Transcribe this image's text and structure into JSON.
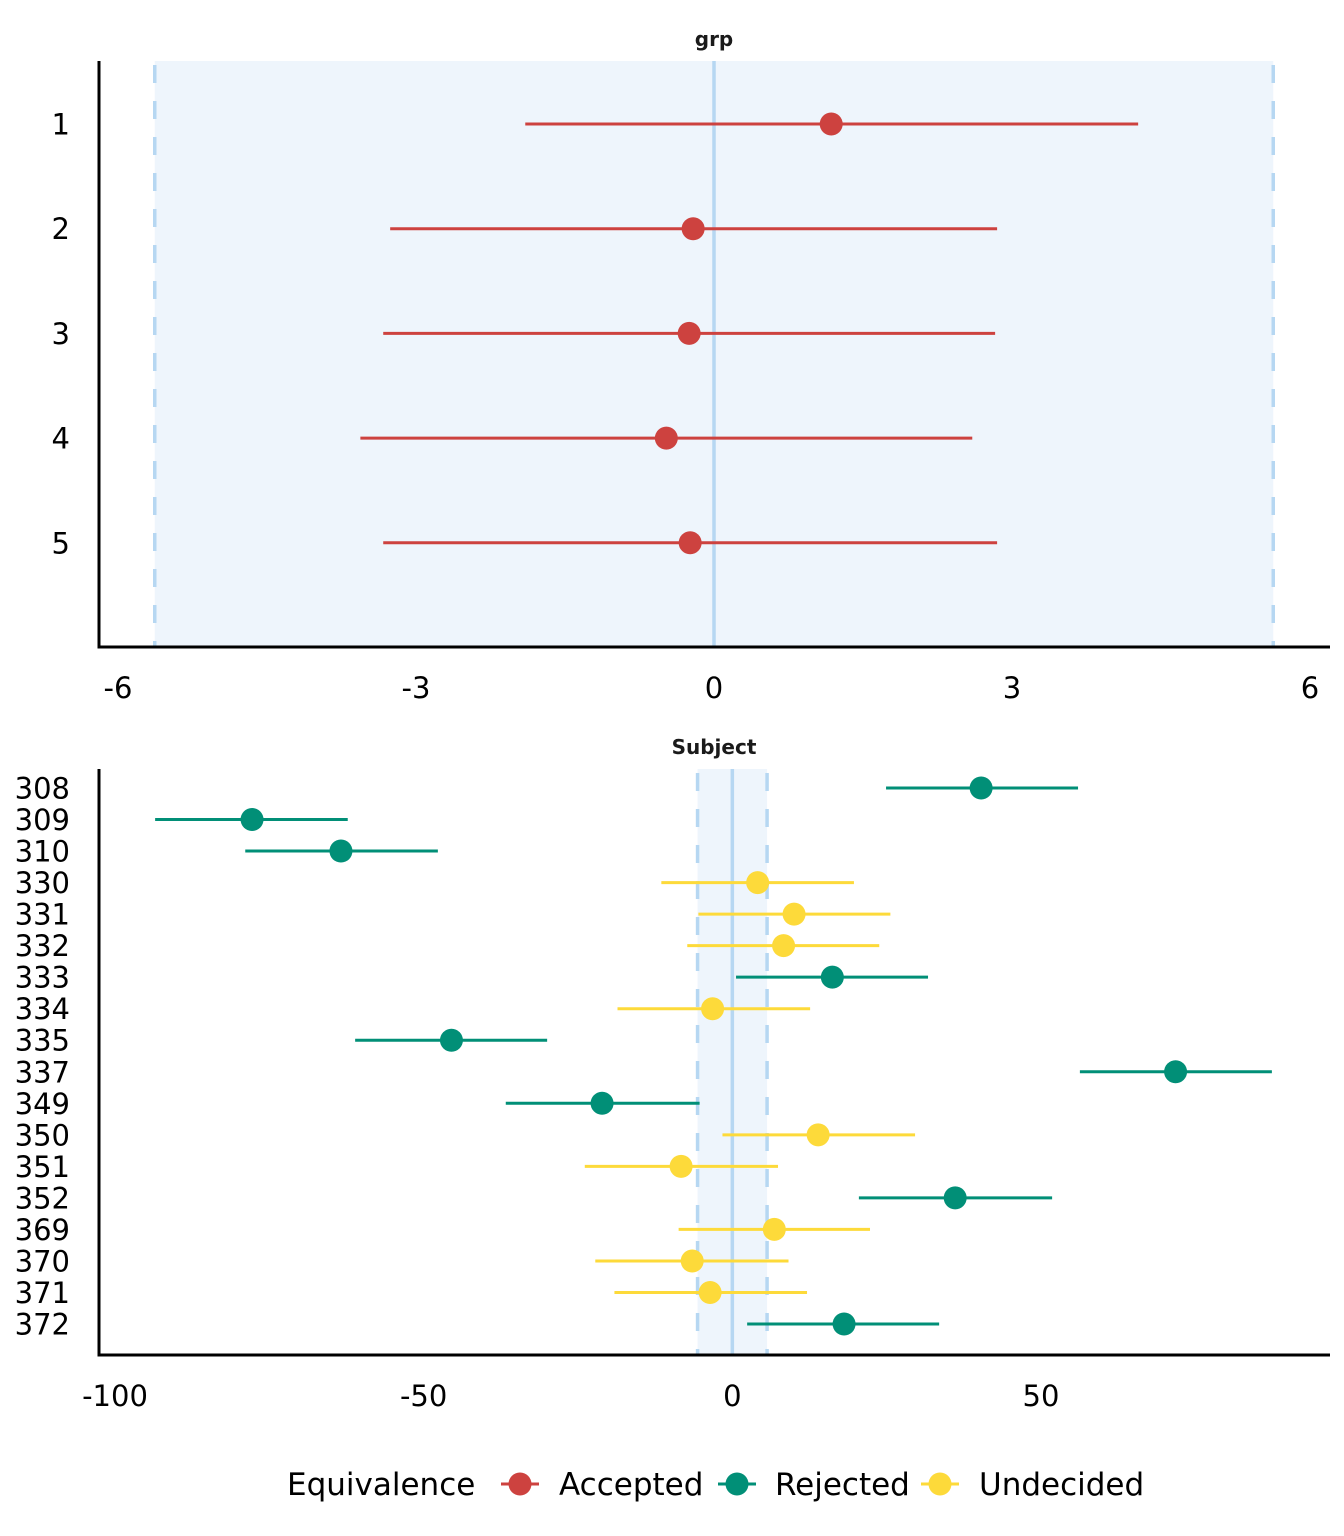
{
  "chart_data": [
    {
      "type": "scatter",
      "subtype": "forest-plot-equivalence",
      "title": "grp",
      "xlabel": "",
      "ylabel": "",
      "xlim": [
        -6.2,
        6.2
      ],
      "x_ticks": [
        -6,
        -3,
        0,
        3,
        6
      ],
      "x_tick_labels": [
        "-6",
        "-3",
        "0",
        "3",
        "6"
      ],
      "rope": [
        -5.63,
        5.63
      ],
      "reference_line": 0,
      "grid": false,
      "categories": [
        "1",
        "2",
        "3",
        "4",
        "5"
      ],
      "rows": [
        {
          "label": "1",
          "estimate": 1.18,
          "ci_low": -1.9,
          "ci_high": 4.27,
          "equivalence": "Accepted"
        },
        {
          "label": "2",
          "estimate": -0.21,
          "ci_low": -3.26,
          "ci_high": 2.85,
          "equivalence": "Accepted"
        },
        {
          "label": "3",
          "estimate": -0.25,
          "ci_low": -3.33,
          "ci_high": 2.83,
          "equivalence": "Accepted"
        },
        {
          "label": "4",
          "estimate": -0.48,
          "ci_low": -3.56,
          "ci_high": 2.6,
          "equivalence": "Accepted"
        },
        {
          "label": "5",
          "estimate": -0.24,
          "ci_low": -3.33,
          "ci_high": 2.85,
          "equivalence": "Accepted"
        }
      ]
    },
    {
      "type": "scatter",
      "subtype": "forest-plot-equivalence",
      "title": "Subject",
      "xlabel": "",
      "ylabel": "",
      "xlim": [
        -102.5,
        96.5
      ],
      "x_ticks": [
        -100,
        -50,
        0,
        50
      ],
      "x_tick_labels": [
        "-100",
        "-50",
        "0",
        "50"
      ],
      "rope": [
        -5.63,
        5.63
      ],
      "reference_line": 0,
      "grid": false,
      "categories": [
        "308",
        "309",
        "310",
        "330",
        "331",
        "332",
        "333",
        "334",
        "335",
        "337",
        "349",
        "350",
        "351",
        "352",
        "369",
        "370",
        "371",
        "372"
      ],
      "rows": [
        {
          "label": "308",
          "estimate": 40.3,
          "ci_low": 24.9,
          "ci_high": 56.0,
          "equivalence": "Rejected"
        },
        {
          "label": "309",
          "estimate": -77.8,
          "ci_low": -93.5,
          "ci_high": -62.3,
          "equivalence": "Rejected"
        },
        {
          "label": "310",
          "estimate": -63.4,
          "ci_low": -78.9,
          "ci_high": -47.7,
          "equivalence": "Rejected"
        },
        {
          "label": "330",
          "estimate": 4.1,
          "ci_low": -11.5,
          "ci_high": 19.7,
          "equivalence": "Undecided"
        },
        {
          "label": "331",
          "estimate": 10.0,
          "ci_low": -5.5,
          "ci_high": 25.6,
          "equivalence": "Undecided"
        },
        {
          "label": "332",
          "estimate": 8.3,
          "ci_low": -7.3,
          "ci_high": 23.8,
          "equivalence": "Undecided"
        },
        {
          "label": "333",
          "estimate": 16.2,
          "ci_low": 0.6,
          "ci_high": 31.7,
          "equivalence": "Rejected"
        },
        {
          "label": "334",
          "estimate": -3.2,
          "ci_low": -18.6,
          "ci_high": 12.6,
          "equivalence": "Undecided"
        },
        {
          "label": "335",
          "estimate": -45.5,
          "ci_low": -61.1,
          "ci_high": -30.0,
          "equivalence": "Rejected"
        },
        {
          "label": "337",
          "estimate": 71.8,
          "ci_low": 56.3,
          "ci_high": 87.4,
          "equivalence": "Rejected"
        },
        {
          "label": "349",
          "estimate": -21.1,
          "ci_low": -36.7,
          "ci_high": -5.3,
          "equivalence": "Rejected"
        },
        {
          "label": "350",
          "estimate": 13.9,
          "ci_low": -1.6,
          "ci_high": 29.6,
          "equivalence": "Undecided"
        },
        {
          "label": "351",
          "estimate": -8.3,
          "ci_low": -23.9,
          "ci_high": 7.4,
          "equivalence": "Undecided"
        },
        {
          "label": "352",
          "estimate": 36.1,
          "ci_low": 20.5,
          "ci_high": 51.8,
          "equivalence": "Rejected"
        },
        {
          "label": "369",
          "estimate": 6.8,
          "ci_low": -8.7,
          "ci_high": 22.3,
          "equivalence": "Undecided"
        },
        {
          "label": "370",
          "estimate": -6.5,
          "ci_low": -22.2,
          "ci_high": 9.1,
          "equivalence": "Undecided"
        },
        {
          "label": "371",
          "estimate": -3.6,
          "ci_low": -19.1,
          "ci_high": 12.1,
          "equivalence": "Undecided"
        },
        {
          "label": "372",
          "estimate": 18.1,
          "ci_low": 2.4,
          "ci_high": 33.5,
          "equivalence": "Rejected"
        }
      ]
    }
  ],
  "legend": {
    "title": "Equivalence",
    "position": "bottom",
    "items": [
      {
        "label": "Accepted",
        "color": "#CD423F"
      },
      {
        "label": "Rejected",
        "color": "#018F77"
      },
      {
        "label": "Undecided",
        "color": "#FDDA3A"
      }
    ]
  },
  "colors": {
    "Accepted": "#CD423F",
    "Rejected": "#018F77",
    "Undecided": "#FDDA3A",
    "rope_fill": "#EEF5FC",
    "rope_line": "#B6D7F2",
    "axis": "#000000"
  }
}
